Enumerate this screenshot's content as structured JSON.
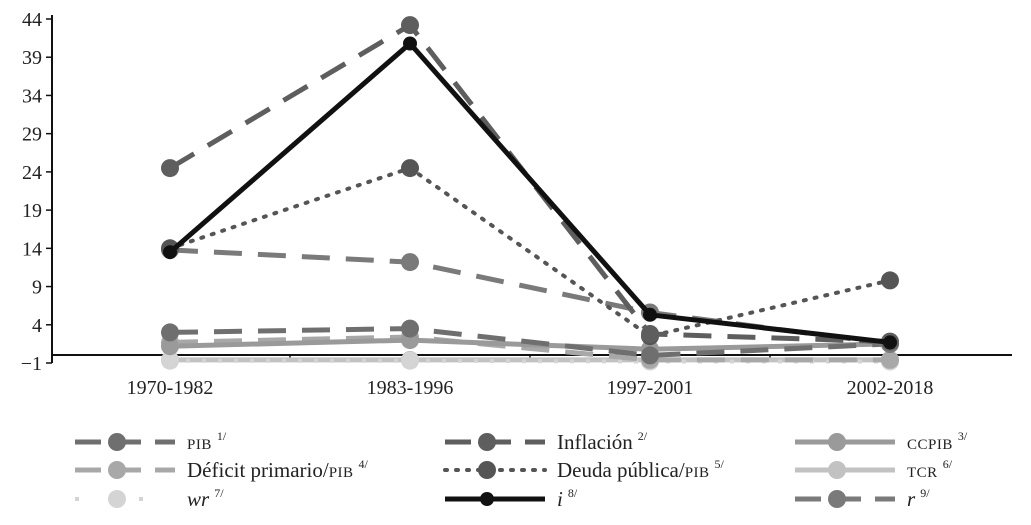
{
  "chart_data": {
    "type": "line",
    "title": "",
    "xlabel": "",
    "ylabel": "",
    "categories": [
      "1970-1982",
      "1983-1996",
      "1997-2001",
      "2002-2018"
    ],
    "ylim": [
      -1,
      44
    ],
    "yticks": [
      "44",
      "39",
      "34",
      "29",
      "24",
      "19",
      "14",
      "9",
      "4",
      "−1"
    ],
    "ytick_values": [
      44,
      39,
      34,
      29,
      24,
      19,
      14,
      9,
      4,
      -1
    ],
    "grid": false,
    "legend_position": "bottom",
    "series": [
      {
        "key": "pib",
        "name": "PIB",
        "sup": "1/",
        "smallcaps": true,
        "italic": false,
        "values": [
          3.0,
          3.5,
          0.0,
          1.5
        ],
        "color": "#6f6f6f",
        "dash": "28 16",
        "width": 5,
        "marker": "#6f6f6f"
      },
      {
        "key": "inflacion",
        "name": "Inflación",
        "sup": "2/",
        "smallcaps": false,
        "italic": false,
        "values": [
          24.5,
          43.2,
          2.8,
          1.8
        ],
        "color": "#5e5e5e",
        "dash": "28 16",
        "width": 5,
        "marker": "#5e5e5e"
      },
      {
        "key": "ccpib",
        "name": "CCPIB",
        "sup": "3/",
        "smallcaps": true,
        "italic": false,
        "values": [
          1.2,
          2.0,
          0.8,
          1.5
        ],
        "color": "#9a9a9a",
        "dash": "",
        "width": 5,
        "marker": "#9a9a9a"
      },
      {
        "key": "deficit",
        "name": "Déficit primario/PIB",
        "sup": "4/",
        "smallcaps": false,
        "italic": false,
        "values": [
          1.7,
          2.4,
          -0.6,
          -0.6
        ],
        "color": "#a8a8a8",
        "dash": "28 16",
        "width": 5,
        "marker": "#a8a8a8"
      },
      {
        "key": "deuda",
        "name": "Deuda pública/PIB",
        "sup": "5/",
        "smallcaps": false,
        "italic": false,
        "values": [
          14.0,
          24.5,
          2.5,
          9.8
        ],
        "color": "#555555",
        "dash": "2 9",
        "width": 4,
        "marker": "#555555"
      },
      {
        "key": "tcr",
        "name": "TCR",
        "sup": "6/",
        "smallcaps": true,
        "italic": false,
        "values": [
          -0.6,
          -0.6,
          -0.6,
          -0.6
        ],
        "color": "#c2c2c2",
        "dash": "",
        "width": 5,
        "marker": "#c2c2c2"
      },
      {
        "key": "wr",
        "name": "wr",
        "sup": "7/",
        "smallcaps": false,
        "italic": true,
        "values": [
          -0.7,
          -0.7,
          -0.8,
          -0.8
        ],
        "color": "#d4d4d4",
        "dash": "4 12",
        "width": 4,
        "marker": "#d4d4d4"
      },
      {
        "key": "i",
        "name": "i",
        "sup": "8/",
        "smallcaps": false,
        "italic": true,
        "values": [
          13.5,
          40.8,
          5.3,
          1.7
        ],
        "color": "#111111",
        "dash": "",
        "width": 5,
        "marker": "#111111"
      },
      {
        "key": "r",
        "name": "r",
        "sup": "9/",
        "smallcaps": false,
        "italic": true,
        "values": [
          13.8,
          12.2,
          5.6,
          1.5
        ],
        "color": "#7a7a7a",
        "dash": "28 16",
        "width": 5,
        "marker": "#7a7a7a"
      }
    ]
  }
}
